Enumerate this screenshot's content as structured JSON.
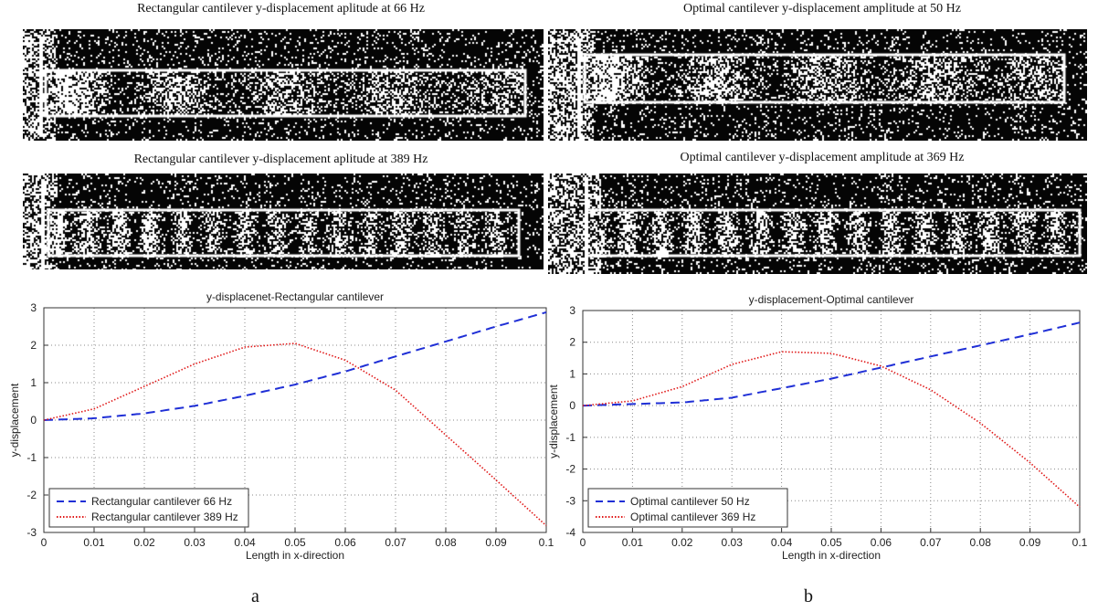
{
  "figure": {
    "label_a": "a",
    "label_b": "b"
  },
  "images": {
    "a_top_title": "Rectangular cantilever y-displacement aplitude at 66 Hz",
    "a_mid_title": "Rectangular cantilever y-displacement aplitude at 389 Hz",
    "b_top_title": "Optimal cantilever y-displacement amplitude at 50 Hz",
    "b_mid_title": "Optimal cantilever y-displacement amplitude at 369 Hz",
    "ink_color": "#ffffff",
    "background_color": "#050505"
  },
  "chart_data": [
    {
      "type": "line",
      "title": "y-displacenet-Rectangular cantilever",
      "xlabel": "Length in x-direction",
      "ylabel": "y-displacement",
      "xlim": [
        0,
        0.1
      ],
      "ylim": [
        -3,
        3
      ],
      "xticks": [
        "0",
        "0.01",
        "0.02",
        "0.03",
        "0.04",
        "0.05",
        "0.06",
        "0.07",
        "0.08",
        "0.09",
        "0.1"
      ],
      "yticks": [
        "-3",
        "-2",
        "-1",
        "0",
        "1",
        "2",
        "3"
      ],
      "grid": true,
      "legend_position": "bottom-left",
      "x": [
        0,
        0.01,
        0.02,
        0.03,
        0.04,
        0.05,
        0.06,
        0.07,
        0.08,
        0.09,
        0.1
      ],
      "series": [
        {
          "name": "Rectangular cantilever 66 Hz",
          "style": "dashed",
          "color": "#1f2fd6",
          "values": [
            0,
            0.05,
            0.18,
            0.38,
            0.65,
            0.95,
            1.3,
            1.7,
            2.1,
            2.5,
            2.88
          ]
        },
        {
          "name": "Rectangular cantilever 389 Hz",
          "style": "dotted",
          "color": "#e01818",
          "values": [
            0,
            0.3,
            0.9,
            1.5,
            1.95,
            2.05,
            1.6,
            0.8,
            -0.4,
            -1.6,
            -2.82
          ]
        }
      ]
    },
    {
      "type": "line",
      "title": "y-displacement-Optimal cantilever",
      "xlabel": "Length in x-direction",
      "ylabel": "y-displacement",
      "xlim": [
        0,
        0.1
      ],
      "ylim": [
        -4,
        3
      ],
      "xticks": [
        "0",
        "0.01",
        "0.02",
        "0.03",
        "0.04",
        "0.05",
        "0.06",
        "0.07",
        "0.08",
        "0.09",
        "0.1"
      ],
      "yticks": [
        "-4",
        "-3",
        "-2",
        "-1",
        "0",
        "1",
        "2",
        "3"
      ],
      "grid": true,
      "legend_position": "bottom-left",
      "x": [
        0,
        0.01,
        0.02,
        0.03,
        0.04,
        0.05,
        0.06,
        0.07,
        0.08,
        0.09,
        0.1
      ],
      "series": [
        {
          "name": "Optimal cantilever 50 Hz",
          "style": "dashed",
          "color": "#1f2fd6",
          "values": [
            0,
            0.05,
            0.1,
            0.25,
            0.55,
            0.85,
            1.2,
            1.55,
            1.9,
            2.25,
            2.62
          ]
        },
        {
          "name": "Optimal cantilever 369 Hz",
          "style": "dotted",
          "color": "#e01818",
          "values": [
            0,
            0.15,
            0.6,
            1.3,
            1.7,
            1.65,
            1.25,
            0.5,
            -0.55,
            -1.8,
            -3.2
          ]
        }
      ]
    }
  ]
}
